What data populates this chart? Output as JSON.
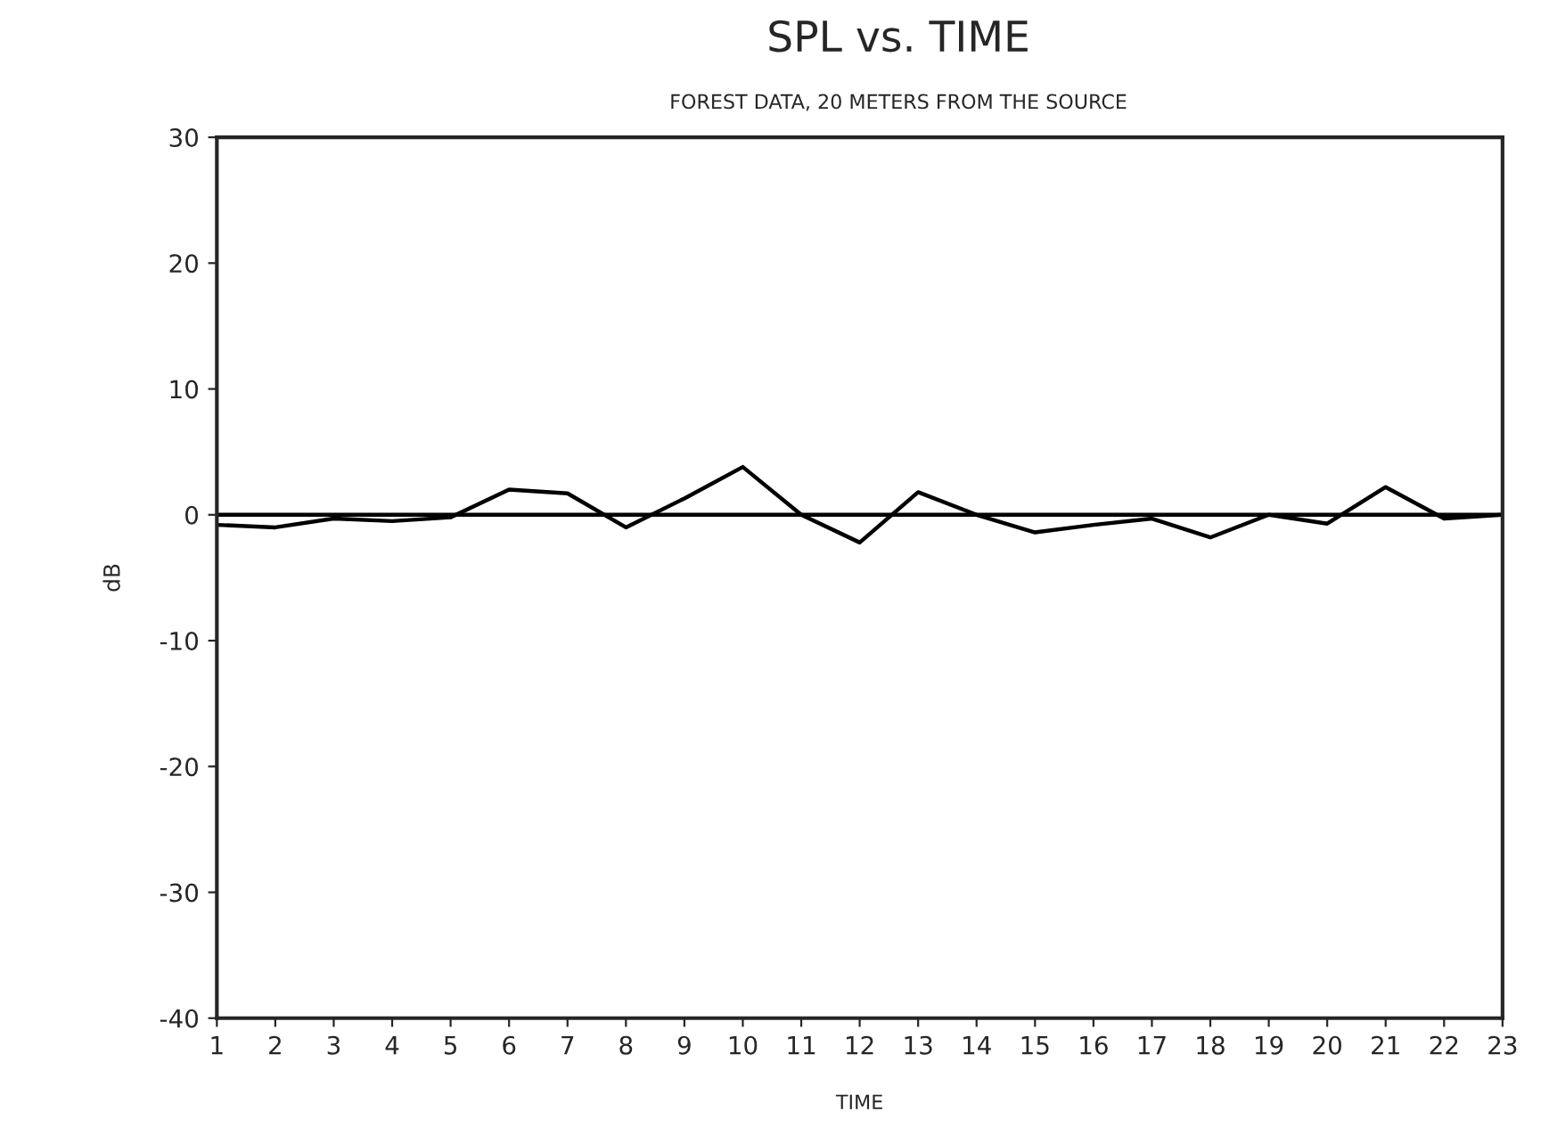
{
  "chart_data": {
    "type": "line",
    "title": "SPL vs. TIME",
    "subtitle": "FOREST DATA, 20 METERS FROM THE SOURCE",
    "xlabel": "TIME",
    "ylabel": "dB",
    "x": [
      1,
      2,
      3,
      4,
      5,
      6,
      7,
      8,
      9,
      10,
      11,
      12,
      13,
      14,
      15,
      16,
      17,
      18,
      19,
      20,
      21,
      22,
      23
    ],
    "series": [
      {
        "color": "#000000",
        "values": [
          -0.8,
          -1,
          -0.3,
          -0.5,
          -0.2,
          2,
          1.7,
          -1,
          1.3,
          3.8,
          0,
          -2.2,
          1.8,
          0,
          -1.4,
          -0.8,
          -0.3,
          -1.8,
          0,
          -0.7,
          2.2,
          -0.3,
          0
        ]
      }
    ],
    "ref_lines": [
      {
        "axis": "y",
        "value": 0,
        "color": "#000000"
      }
    ],
    "xlim": [
      1,
      23
    ],
    "xticks": [
      1,
      2,
      3,
      4,
      5,
      6,
      7,
      8,
      9,
      10,
      11,
      12,
      13,
      14,
      15,
      16,
      17,
      18,
      19,
      20,
      21,
      22,
      23
    ],
    "ylim": [
      -40,
      30
    ],
    "yticks": [
      -40,
      -30,
      -20,
      -10,
      0,
      10,
      20,
      30
    ],
    "grid": false
  }
}
